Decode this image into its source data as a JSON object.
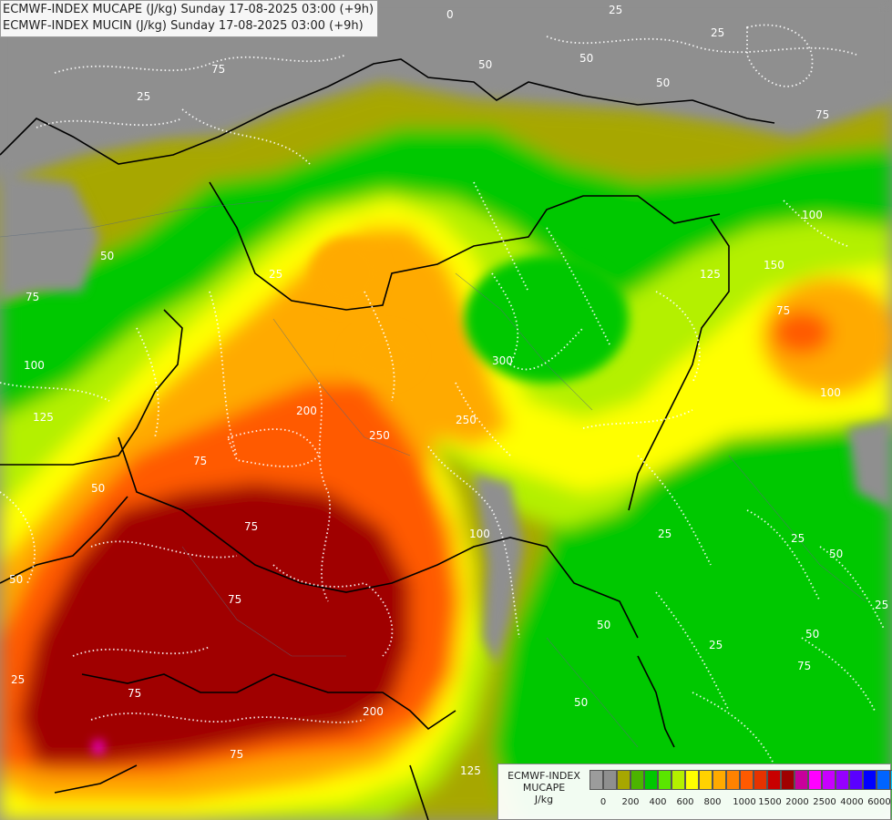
{
  "title": {
    "line1": "ECMWF-INDEX MUCAPE (J/kg) Sunday 17-08-2025 03:00 (+9h)",
    "line2": "ECMWF-INDEX MUCIN (J/kg) Sunday 17-08-2025 03:00 (+9h)"
  },
  "legend": {
    "line1": "ECMWF-INDEX",
    "line2": "MUCAPE",
    "line3": "J/kg",
    "colors": [
      "#9c9c9c",
      "#8f8f8f",
      "#a7a700",
      "#4cb400",
      "#00c800",
      "#5ae600",
      "#b4f000",
      "#ffff00",
      "#ffd200",
      "#ffaa00",
      "#ff8200",
      "#ff5a00",
      "#e63200",
      "#c80000",
      "#a00000",
      "#c8009b",
      "#ff00ff",
      "#c800ff",
      "#9600ff",
      "#5a00ff",
      "#0000ff",
      "#0064ff",
      "#00c8ff",
      "#64ffff",
      "#ffffff"
    ],
    "ticks": [
      "0",
      "200",
      "400",
      "600",
      "800",
      "1000",
      "1500",
      "2000",
      "2500",
      "4000",
      "6000"
    ]
  },
  "contour_labels": [
    "0",
    "25",
    "25",
    "50",
    "75",
    "25",
    "50",
    "50",
    "75",
    "100",
    "125",
    "150",
    "75",
    "100",
    "50",
    "75",
    "100",
    "125",
    "25",
    "200",
    "300",
    "250",
    "250",
    "75",
    "75",
    "75",
    "75",
    "100",
    "50",
    "25",
    "25",
    "50",
    "75",
    "200",
    "125",
    "50",
    "50",
    "25",
    "75",
    "25",
    "50",
    "25",
    "50"
  ]
}
